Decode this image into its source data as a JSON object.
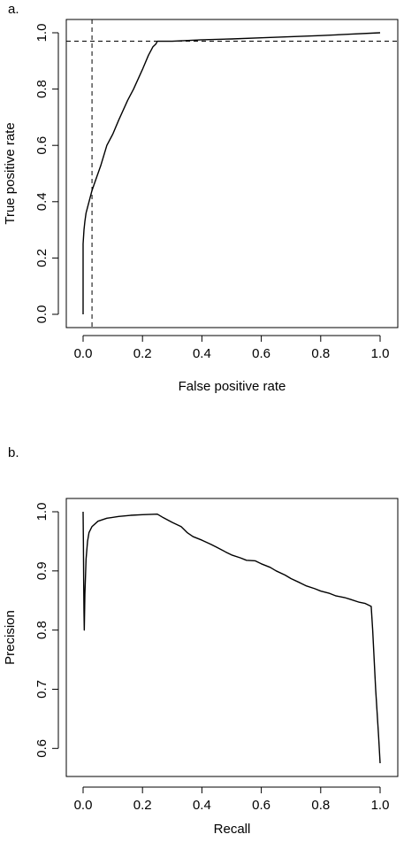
{
  "chart_data": [
    {
      "type": "line",
      "panel_label": "a.",
      "xlabel": "False positive rate",
      "ylabel": "True positive rate",
      "xlim": [
        0,
        1
      ],
      "ylim": [
        0,
        1
      ],
      "xticks": [
        "0.0",
        "0.2",
        "0.4",
        "0.6",
        "0.8",
        "1.0"
      ],
      "yticks": [
        "0.0",
        "0.2",
        "0.4",
        "0.6",
        "0.8",
        "1.0"
      ],
      "grid": false,
      "series": [
        {
          "style": "solid",
          "x": [
            0,
            0.0,
            0.003,
            0.006,
            0.01,
            0.015,
            0.02,
            0.03,
            0.04,
            0.05,
            0.06,
            0.08,
            0.1,
            0.12,
            0.15,
            0.17,
            0.2,
            0.22,
            0.235,
            0.245,
            0.25,
            0.27,
            0.3,
            0.4,
            0.5,
            0.6,
            0.7,
            0.8,
            0.9,
            1.0
          ],
          "y": [
            0,
            0.25,
            0.3,
            0.33,
            0.36,
            0.38,
            0.4,
            0.44,
            0.47,
            0.5,
            0.53,
            0.6,
            0.64,
            0.69,
            0.76,
            0.8,
            0.87,
            0.92,
            0.95,
            0.96,
            0.97,
            0.97,
            0.97,
            0.975,
            0.978,
            0.982,
            0.986,
            0.99,
            0.995,
            1.0
          ]
        }
      ],
      "reference_lines": {
        "vertical_x": 0.03,
        "horizontal_y": 0.97,
        "style": "dashed"
      }
    },
    {
      "type": "line",
      "panel_label": "b.",
      "xlabel": "Recall",
      "ylabel": "Precision",
      "xlim": [
        0,
        1
      ],
      "ylim": [
        0.575,
        1.0
      ],
      "xticks": [
        "0.0",
        "0.2",
        "0.4",
        "0.6",
        "0.8",
        "1.0"
      ],
      "yticks": [
        "0.6",
        "0.7",
        "0.8",
        "0.9",
        "1.0"
      ],
      "grid": false,
      "series": [
        {
          "style": "solid",
          "x": [
            0.0,
            0.001,
            0.002,
            0.003,
            0.004,
            0.006,
            0.01,
            0.015,
            0.02,
            0.03,
            0.05,
            0.08,
            0.12,
            0.16,
            0.2,
            0.25,
            0.27,
            0.3,
            0.33,
            0.35,
            0.37,
            0.4,
            0.43,
            0.45,
            0.48,
            0.5,
            0.53,
            0.55,
            0.58,
            0.6,
            0.63,
            0.65,
            0.68,
            0.7,
            0.73,
            0.75,
            0.78,
            0.8,
            0.83,
            0.85,
            0.88,
            0.9,
            0.93,
            0.95,
            0.97,
            0.975,
            0.98,
            0.985,
            0.99,
            0.995,
            1.0
          ],
          "y": [
            1.0,
            0.95,
            0.88,
            0.83,
            0.8,
            0.86,
            0.92,
            0.95,
            0.965,
            0.975,
            0.984,
            0.989,
            0.992,
            0.994,
            0.995,
            0.996,
            0.99,
            0.982,
            0.975,
            0.965,
            0.958,
            0.952,
            0.945,
            0.94,
            0.932,
            0.927,
            0.922,
            0.918,
            0.917,
            0.912,
            0.906,
            0.9,
            0.893,
            0.887,
            0.88,
            0.875,
            0.87,
            0.866,
            0.862,
            0.858,
            0.855,
            0.852,
            0.847,
            0.845,
            0.84,
            0.8,
            0.75,
            0.7,
            0.66,
            0.62,
            0.575
          ]
        }
      ]
    }
  ]
}
